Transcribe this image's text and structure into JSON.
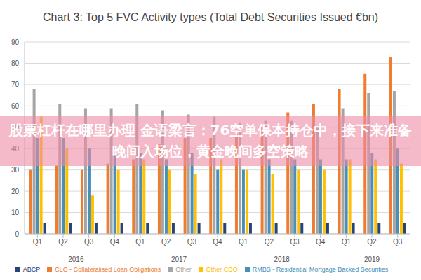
{
  "chart_data": {
    "type": "bar",
    "title": "Chart 3: Top 5 FVC Activity types (Total Debt Securities Issued €bn)",
    "categories": [
      "Q1",
      "Q2",
      "Q3",
      "Q4",
      "Q1",
      "Q2",
      "Q3",
      "Q4",
      "Q1",
      "Q2",
      "Q3",
      "Q4",
      "Q1",
      "Q2",
      "Q3"
    ],
    "years": [
      "2016",
      "2016",
      "2016",
      "2016",
      "2017",
      "2017",
      "2017",
      "2017",
      "2018",
      "2018",
      "2018",
      "2018",
      "2019",
      "2019",
      "2019"
    ],
    "series": [
      {
        "name": "CLO - Collateralised Loan Obligations",
        "color": "#ed7d31",
        "values": [
          30,
          32,
          30,
          33,
          35,
          42,
          45,
          45,
          47,
          50,
          57,
          61,
          68,
          75,
          83
        ]
      },
      {
        "name": "Other",
        "color": "#a5a5a5",
        "values": [
          68,
          61,
          59,
          59,
          61,
          58,
          56,
          55,
          52,
          53,
          53,
          50,
          59,
          66,
          67
        ]
      },
      {
        "name": "RMBS - Residential Mortgage Backed Securities",
        "color": "#4a8fb8",
        "values": [
          45,
          45,
          40,
          37,
          38,
          35,
          38,
          30,
          30,
          35,
          35,
          35,
          35,
          38,
          40
        ]
      },
      {
        "name": "Other CDO",
        "color": "#ffc000",
        "values": [
          55,
          40,
          18,
          30,
          35,
          30,
          28,
          35,
          30,
          28,
          30,
          30,
          35,
          35,
          33
        ]
      },
      {
        "name": "ABCP",
        "color": "#264478",
        "values": [
          5,
          5,
          5,
          5,
          5,
          5,
          5,
          5,
          5,
          5,
          5,
          5,
          5,
          5,
          5
        ]
      }
    ],
    "ylim": [
      0,
      90
    ],
    "yticks": [
      0,
      10,
      20,
      30,
      40,
      50,
      60,
      70,
      80,
      90
    ],
    "grid": true,
    "legend": "bottom",
    "annotation": "股票杠杆在哪里办理 金语梁言：76空单保本持仓中，接下来准备晚间入场位，黄金晚间多空策略"
  }
}
